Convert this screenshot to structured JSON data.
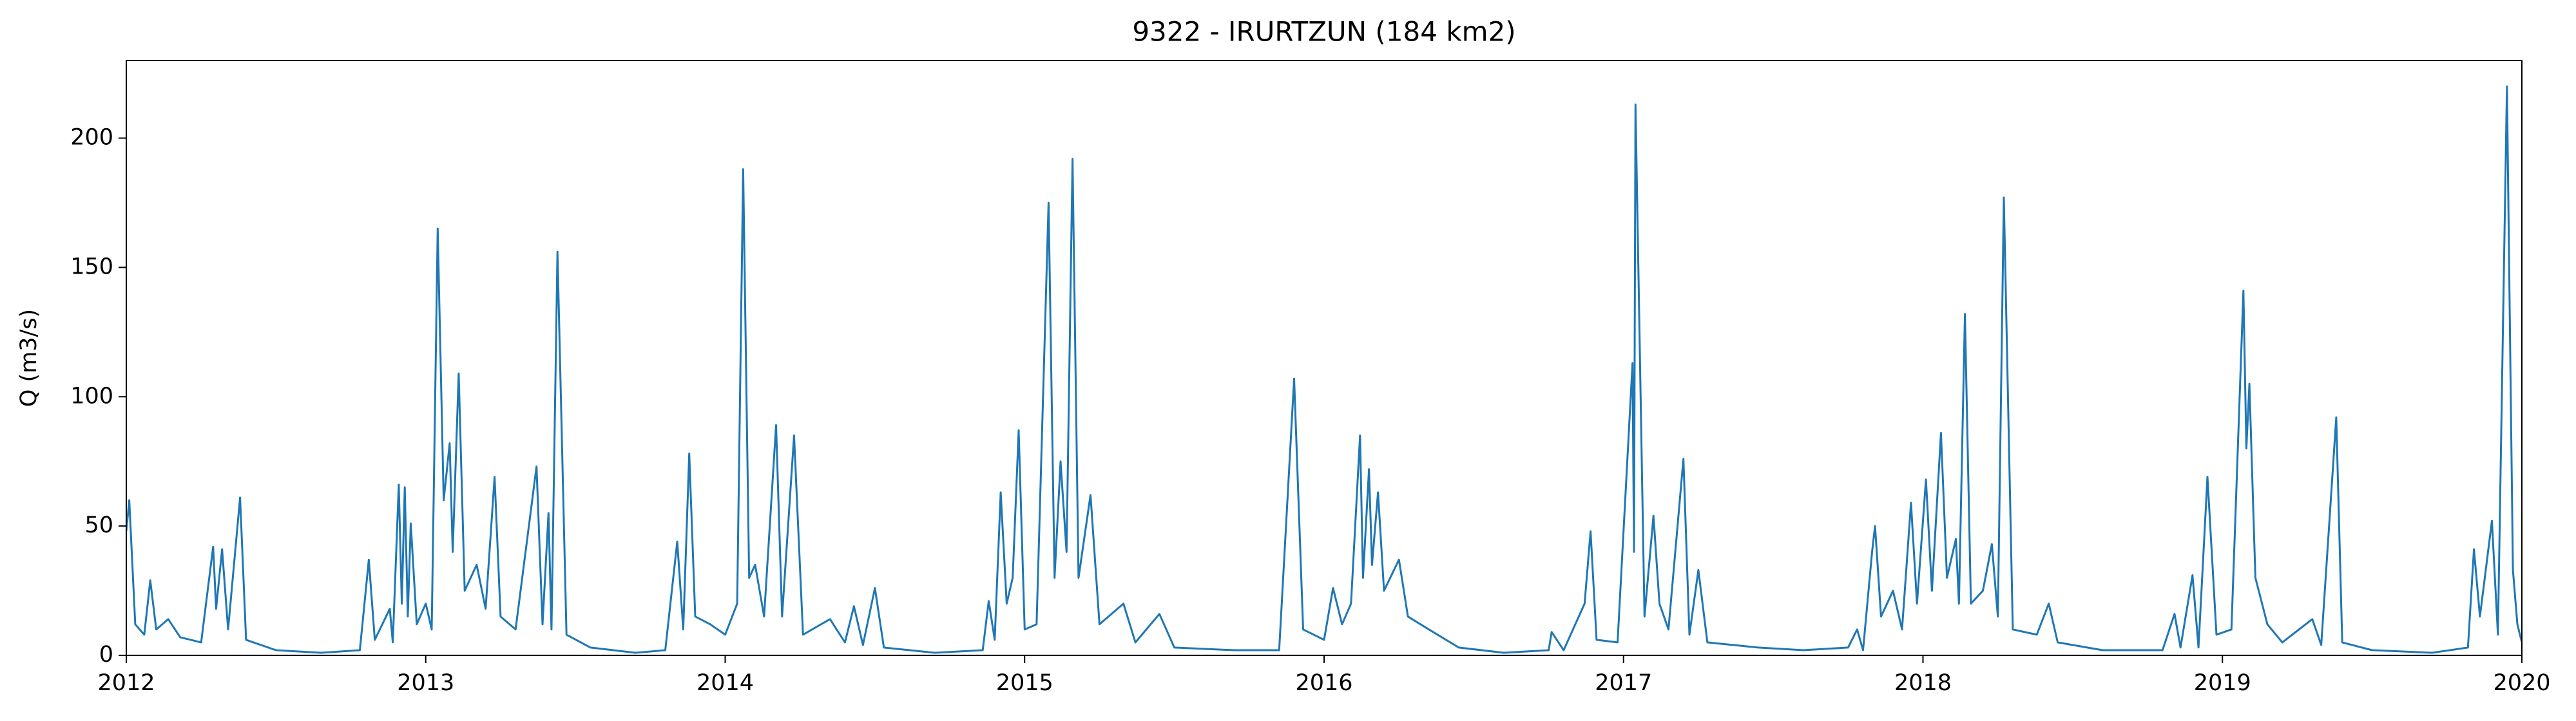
{
  "chart_data": {
    "type": "line",
    "title": "9322 - IRURTZUN (184 km2)",
    "y_label": "Q (m3/s)",
    "color": "#1f77b4",
    "xlim": [
      2012,
      2020
    ],
    "xticks": [
      2012,
      2013,
      2014,
      2015,
      2016,
      2017,
      2018,
      2019,
      2020
    ],
    "ylim": [
      0,
      230
    ],
    "yticks": [
      0,
      50,
      100,
      150,
      200
    ],
    "x": [
      2012.0,
      2012.01,
      2012.03,
      2012.06,
      2012.08,
      2012.1,
      2012.14,
      2012.18,
      2012.25,
      2012.29,
      2012.3,
      2012.32,
      2012.34,
      2012.38,
      2012.4,
      2012.5,
      2012.65,
      2012.78,
      2012.81,
      2012.83,
      2012.88,
      2012.89,
      2012.91,
      2012.92,
      2012.93,
      2012.94,
      2012.95,
      2012.97,
      2013.0,
      2013.02,
      2013.04,
      2013.06,
      2013.08,
      2013.09,
      2013.11,
      2013.13,
      2013.17,
      2013.2,
      2013.23,
      2013.25,
      2013.3,
      2013.37,
      2013.39,
      2013.41,
      2013.42,
      2013.44,
      2013.47,
      2013.55,
      2013.7,
      2013.8,
      2013.84,
      2013.86,
      2013.88,
      2013.9,
      2013.95,
      2014.0,
      2014.04,
      2014.06,
      2014.08,
      2014.1,
      2014.13,
      2014.17,
      2014.19,
      2014.23,
      2014.26,
      2014.35,
      2014.4,
      2014.43,
      2014.46,
      2014.5,
      2014.53,
      2014.7,
      2014.86,
      2014.88,
      2014.9,
      2014.92,
      2014.94,
      2014.96,
      2014.98,
      2015.0,
      2015.04,
      2015.08,
      2015.1,
      2015.12,
      2015.14,
      2015.16,
      2015.18,
      2015.22,
      2015.25,
      2015.33,
      2015.37,
      2015.45,
      2015.5,
      2015.7,
      2015.85,
      2015.9,
      2015.93,
      2016.0,
      2016.03,
      2016.06,
      2016.09,
      2016.12,
      2016.13,
      2016.15,
      2016.16,
      2016.18,
      2016.2,
      2016.25,
      2016.28,
      2016.35,
      2016.45,
      2016.6,
      2016.75,
      2016.76,
      2016.8,
      2016.87,
      2016.89,
      2016.91,
      2016.98,
      2017.03,
      2017.035,
      2017.04,
      2017.07,
      2017.1,
      2017.12,
      2017.15,
      2017.2,
      2017.22,
      2017.25,
      2017.28,
      2017.45,
      2017.6,
      2017.75,
      2017.78,
      2017.8,
      2017.83,
      2017.84,
      2017.86,
      2017.9,
      2017.93,
      2017.96,
      2017.98,
      2018.01,
      2018.03,
      2018.06,
      2018.08,
      2018.11,
      2018.12,
      2018.14,
      2018.16,
      2018.2,
      2018.23,
      2018.25,
      2018.27,
      2018.3,
      2018.38,
      2018.42,
      2018.45,
      2018.6,
      2018.8,
      2018.84,
      2018.86,
      2018.9,
      2018.92,
      2018.95,
      2018.98,
      2019.03,
      2019.07,
      2019.08,
      2019.09,
      2019.11,
      2019.15,
      2019.2,
      2019.3,
      2019.33,
      2019.38,
      2019.4,
      2019.5,
      2019.7,
      2019.82,
      2019.84,
      2019.86,
      2019.9,
      2019.92,
      2019.95,
      2019.97,
      2019.985,
      2020.0
    ],
    "values": [
      48,
      60,
      12,
      8,
      29,
      10,
      14,
      7,
      5,
      42,
      18,
      41,
      10,
      61,
      6,
      2,
      1,
      2,
      37,
      6,
      18,
      5,
      66,
      20,
      65,
      15,
      51,
      12,
      20,
      10,
      165,
      60,
      82,
      40,
      109,
      25,
      35,
      18,
      69,
      15,
      10,
      73,
      12,
      55,
      10,
      156,
      8,
      3,
      1,
      2,
      44,
      10,
      78,
      15,
      12,
      8,
      20,
      188,
      30,
      35,
      15,
      89,
      15,
      85,
      8,
      14,
      5,
      19,
      4,
      26,
      3,
      1,
      2,
      21,
      6,
      63,
      20,
      30,
      87,
      10,
      12,
      175,
      30,
      75,
      40,
      192,
      30,
      62,
      12,
      20,
      5,
      16,
      3,
      2,
      2,
      107,
      10,
      6,
      26,
      12,
      20,
      85,
      30,
      72,
      35,
      63,
      25,
      37,
      15,
      10,
      3,
      1,
      2,
      9,
      2,
      20,
      48,
      6,
      5,
      113,
      40,
      213,
      15,
      54,
      20,
      10,
      76,
      8,
      33,
      5,
      3,
      2,
      3,
      10,
      2,
      40,
      50,
      15,
      25,
      10,
      59,
      20,
      68,
      25,
      86,
      30,
      45,
      20,
      132,
      20,
      25,
      43,
      15,
      177,
      10,
      8,
      20,
      5,
      2,
      2,
      16,
      3,
      31,
      3,
      69,
      8,
      10,
      141,
      80,
      105,
      30,
      12,
      5,
      14,
      4,
      92,
      5,
      2,
      1,
      3,
      41,
      15,
      52,
      8,
      220,
      33,
      12,
      5
    ]
  }
}
